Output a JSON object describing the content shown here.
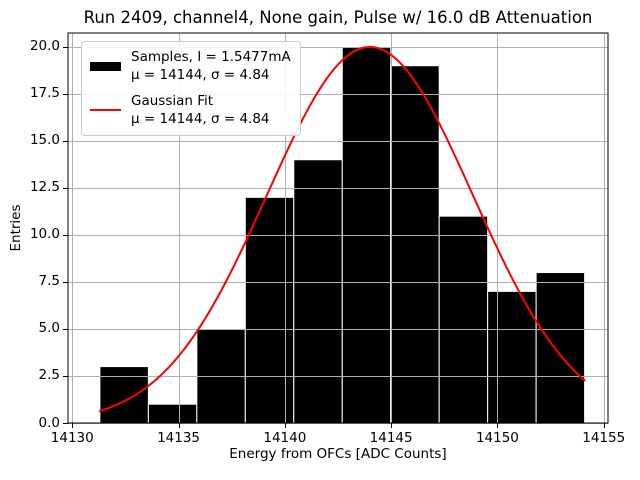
{
  "chart_data": {
    "type": "bar",
    "subtype": "histogram-with-gaussian-fit",
    "title": "Run 2409, channel4, None gain, Pulse w/ 16.0 dB Attenuation",
    "xlabel": "Energy from OFCs [ADC Counts]",
    "ylabel": "Entries",
    "xlim": [
      14129.8,
      14155.2
    ],
    "ylim": [
      0,
      20.74
    ],
    "grid": true,
    "x_tick_values": [
      14130,
      14135,
      14140,
      14145,
      14150,
      14155
    ],
    "x_tick_labels": [
      "14130",
      "14135",
      "14140",
      "14145",
      "14150",
      "14155"
    ],
    "y_tick_values": [
      0.0,
      2.5,
      5.0,
      7.5,
      10.0,
      12.5,
      15.0,
      17.5,
      20.0
    ],
    "y_tick_labels": [
      "0.0",
      "2.5",
      "5.0",
      "7.5",
      "10.0",
      "12.5",
      "15.0",
      "17.5",
      "20.0"
    ],
    "bins": {
      "bin_edges": [
        14131.3,
        14133.58,
        14135.86,
        14138.14,
        14140.42,
        14142.7,
        14144.98,
        14147.26,
        14149.54,
        14151.82,
        14154.1
      ],
      "counts": [
        3,
        1,
        5,
        12,
        14,
        20,
        19,
        11,
        7,
        8
      ],
      "total_entries": 100
    },
    "gaussian_fit": {
      "amplitude": 20,
      "mu": 14144,
      "sigma": 4.84,
      "curve_x_range": [
        14131.3,
        14154.1
      ]
    },
    "colors": {
      "bars": "#000000",
      "bar_edges": "#ffffff",
      "fit_line": "#ff0000",
      "grid": "#b0b0b0",
      "spines": "#000000",
      "text": "#000000",
      "background": "#ffffff"
    },
    "legend": {
      "position": "upper-left",
      "entries": [
        {
          "swatch": "black-patch",
          "label": "Samples, I = 1.5477mA",
          "stats": "μ = 14144, σ = 4.84"
        },
        {
          "swatch": "red-line",
          "label": "Gaussian Fit",
          "stats": "μ = 14144, σ = 4.84"
        }
      ]
    }
  }
}
